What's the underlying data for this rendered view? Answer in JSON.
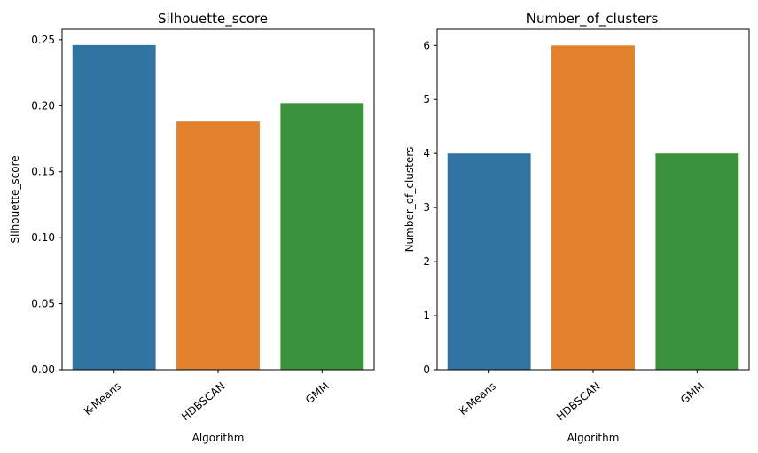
{
  "chart_data": [
    {
      "type": "bar",
      "title": "Silhouette_score",
      "xlabel": "Algorithm",
      "ylabel": "Silhouette_score",
      "categories": [
        "K-Means",
        "HDBSCAN",
        "GMM"
      ],
      "values": [
        0.246,
        0.188,
        0.202
      ],
      "colors": [
        "#3274a1",
        "#e1812c",
        "#3a923a"
      ],
      "ylim": [
        0,
        0.258
      ],
      "yticks": [
        0.0,
        0.05,
        0.1,
        0.15,
        0.2,
        0.25
      ],
      "ytick_labels": [
        "0.00",
        "0.05",
        "0.10",
        "0.15",
        "0.20",
        "0.25"
      ],
      "grid": false,
      "legend": "none"
    },
    {
      "type": "bar",
      "title": "Number_of_clusters",
      "xlabel": "Algorithm",
      "ylabel": "Number_of_clusters",
      "categories": [
        "K-Means",
        "HDBSCAN",
        "GMM"
      ],
      "values": [
        4,
        6,
        4
      ],
      "colors": [
        "#3274a1",
        "#e1812c",
        "#3a923a"
      ],
      "ylim": [
        0,
        6.3
      ],
      "yticks": [
        0,
        1,
        2,
        3,
        4,
        5,
        6
      ],
      "ytick_labels": [
        "0",
        "1",
        "2",
        "3",
        "4",
        "5",
        "6"
      ],
      "grid": false,
      "legend": "none"
    }
  ]
}
